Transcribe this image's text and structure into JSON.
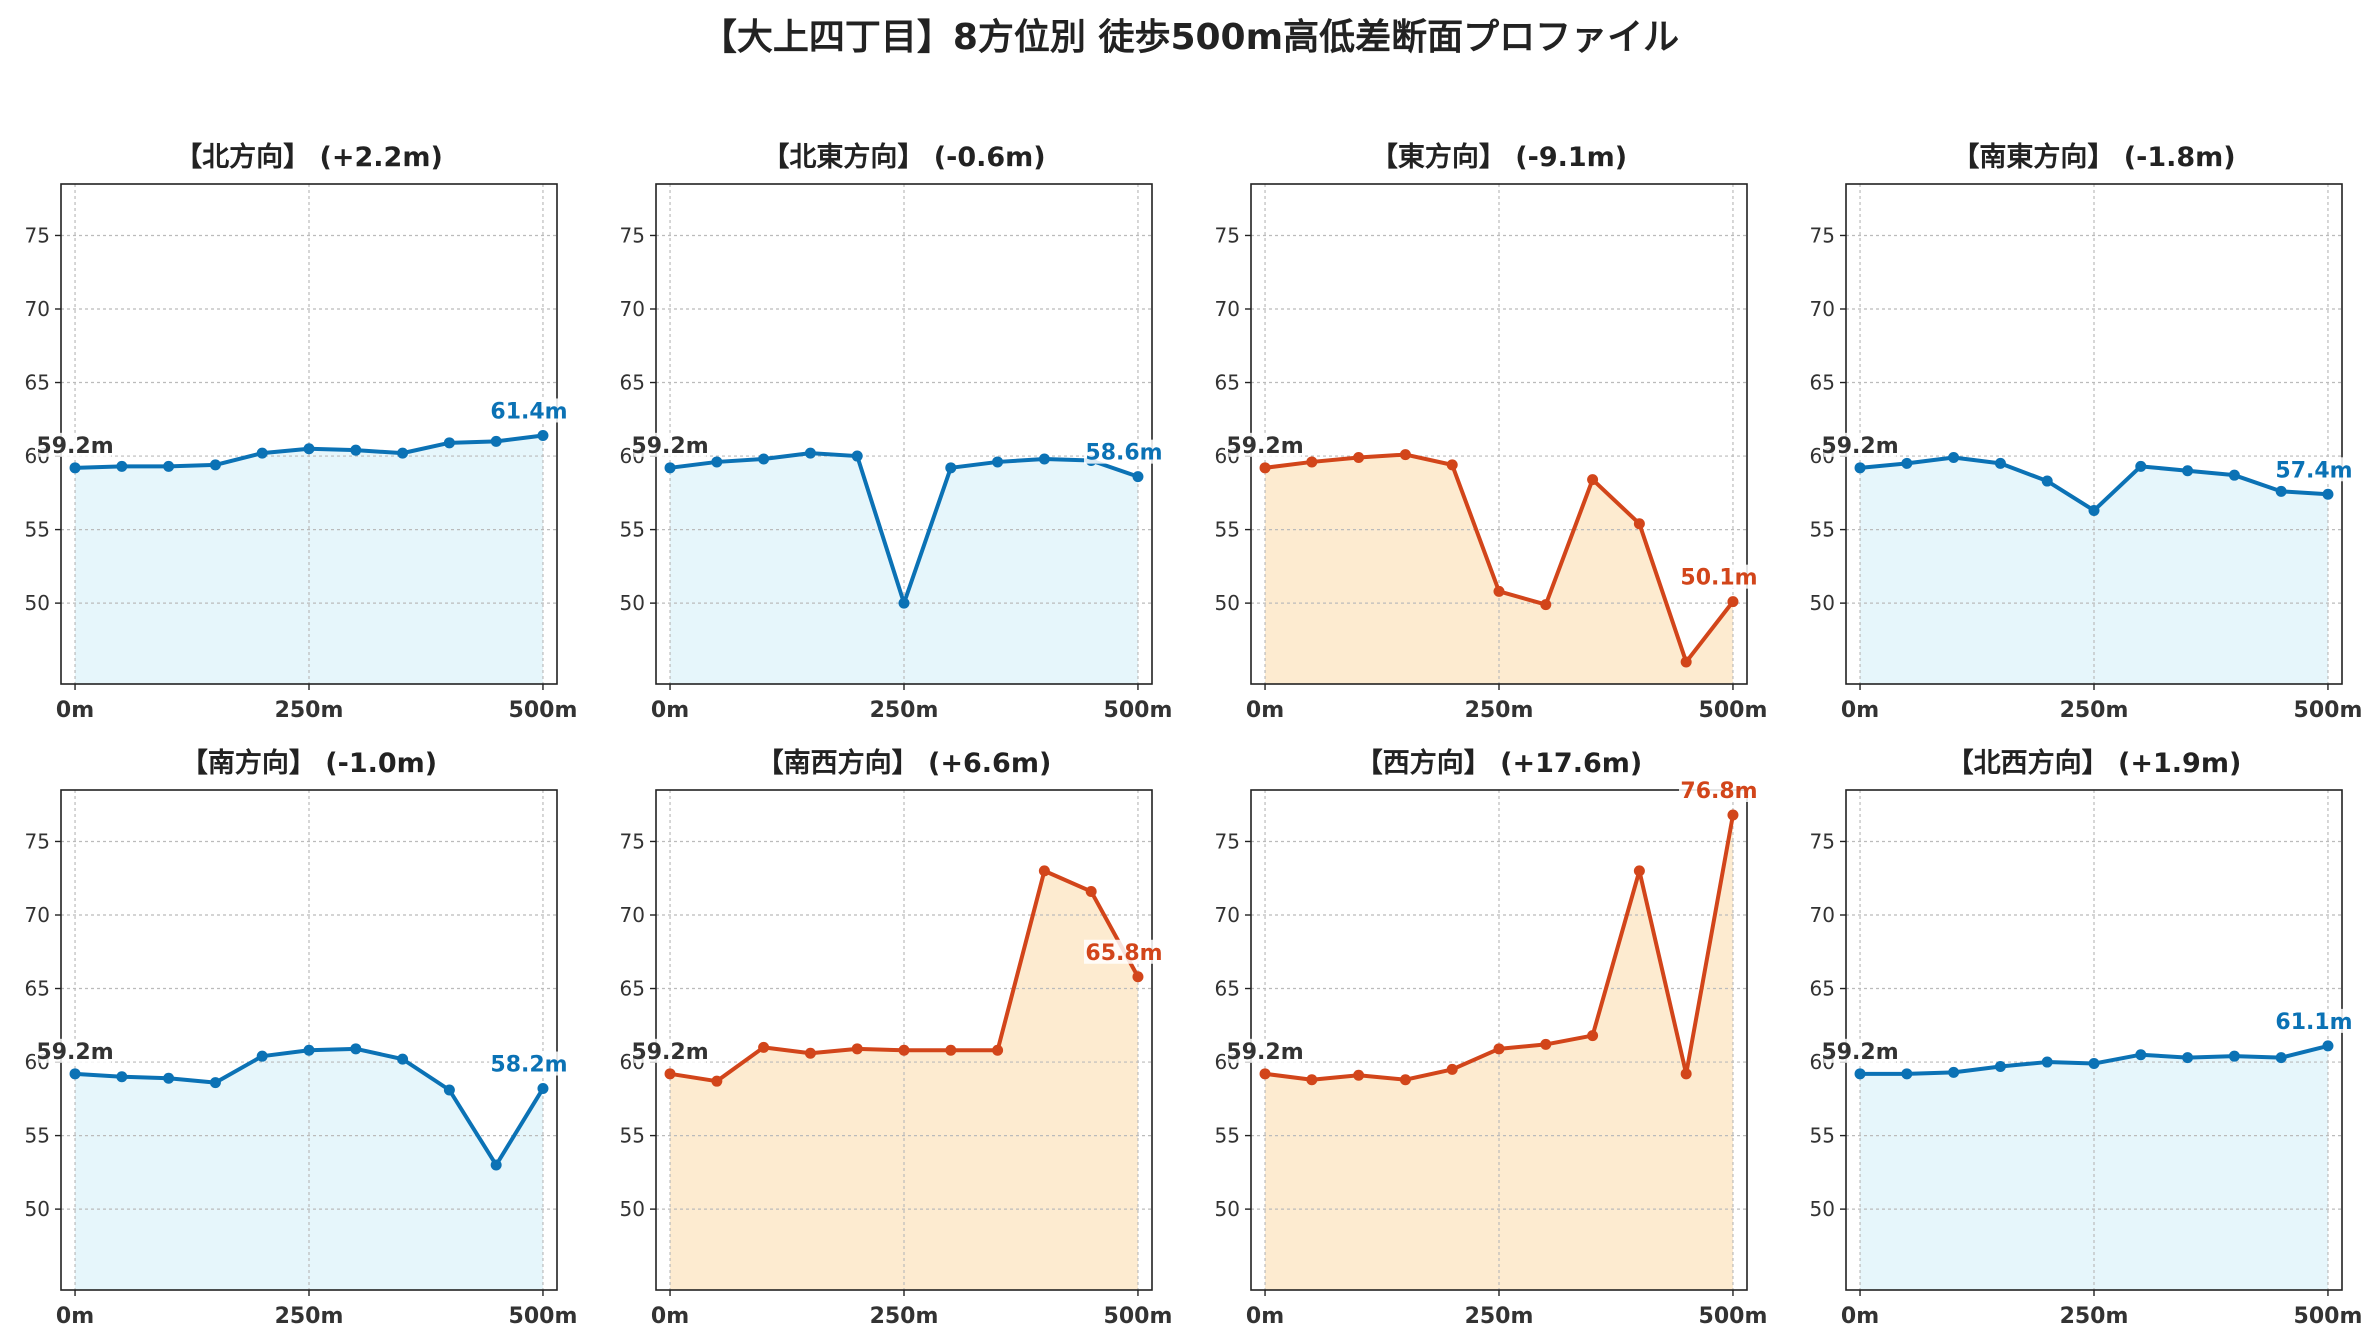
{
  "title": "【大上四丁目】8方位別 徒歩500m高低差断面プロファイル",
  "colors": {
    "blue": "#0b72b5",
    "red": "#d2451a",
    "blue_fill": "#e6f6fb",
    "red_fill": "#fdebd0",
    "grid": "#bbbbbb",
    "text": "#333333"
  },
  "chart_data": [
    {
      "type": "area",
      "title": "【北方向】 (+2.2m)",
      "trend": "up_small",
      "x": [
        0,
        50,
        100,
        150,
        200,
        250,
        300,
        350,
        400,
        450,
        500
      ],
      "y": [
        59.2,
        59.3,
        59.3,
        59.4,
        60.2,
        60.5,
        60.4,
        60.2,
        60.9,
        61.0,
        61.4
      ],
      "start_label": "59.2m",
      "end_label": "61.4m",
      "xticks": [
        "0m",
        "250m",
        "500m"
      ],
      "yticks": [
        50,
        55,
        60,
        65,
        70,
        75
      ],
      "xlim": [
        -15,
        515
      ],
      "ylim": [
        44.5,
        78.5
      ],
      "grid": true
    },
    {
      "type": "area",
      "title": "【北東方向】 (-0.6m)",
      "trend": "down_small",
      "x": [
        0,
        50,
        100,
        150,
        200,
        250,
        300,
        350,
        400,
        450,
        500
      ],
      "y": [
        59.2,
        59.6,
        59.8,
        60.2,
        60.0,
        50.0,
        59.2,
        59.6,
        59.8,
        59.7,
        58.6
      ],
      "start_label": "59.2m",
      "end_label": "58.6m",
      "xticks": [
        "0m",
        "250m",
        "500m"
      ],
      "yticks": [
        50,
        55,
        60,
        65,
        70,
        75
      ],
      "xlim": [
        -15,
        515
      ],
      "ylim": [
        44.5,
        78.5
      ],
      "grid": true
    },
    {
      "type": "area",
      "title": "【東方向】 (-9.1m)",
      "trend": "down_large",
      "x": [
        0,
        50,
        100,
        150,
        200,
        250,
        300,
        350,
        400,
        450,
        500
      ],
      "y": [
        59.2,
        59.6,
        59.9,
        60.1,
        59.4,
        50.8,
        49.9,
        58.4,
        55.4,
        46.0,
        50.1
      ],
      "start_label": "59.2m",
      "end_label": "50.1m",
      "xticks": [
        "0m",
        "250m",
        "500m"
      ],
      "yticks": [
        50,
        55,
        60,
        65,
        70,
        75
      ],
      "xlim": [
        -15,
        515
      ],
      "ylim": [
        44.5,
        78.5
      ],
      "grid": true
    },
    {
      "type": "area",
      "title": "【南東方向】 (-1.8m)",
      "trend": "down_small",
      "x": [
        0,
        50,
        100,
        150,
        200,
        250,
        300,
        350,
        400,
        450,
        500
      ],
      "y": [
        59.2,
        59.5,
        59.9,
        59.5,
        58.3,
        56.3,
        59.3,
        59.0,
        58.7,
        57.6,
        57.4
      ],
      "start_label": "59.2m",
      "end_label": "57.4m",
      "xticks": [
        "0m",
        "250m",
        "500m"
      ],
      "yticks": [
        50,
        55,
        60,
        65,
        70,
        75
      ],
      "xlim": [
        -15,
        515
      ],
      "ylim": [
        44.5,
        78.5
      ],
      "grid": true
    },
    {
      "type": "area",
      "title": "【南方向】 (-1.0m)",
      "trend": "down_small",
      "x": [
        0,
        50,
        100,
        150,
        200,
        250,
        300,
        350,
        400,
        450,
        500
      ],
      "y": [
        59.2,
        59.0,
        58.9,
        58.6,
        60.4,
        60.8,
        60.9,
        60.2,
        58.1,
        53.0,
        58.2
      ],
      "start_label": "59.2m",
      "end_label": "58.2m",
      "xticks": [
        "0m",
        "250m",
        "500m"
      ],
      "yticks": [
        50,
        55,
        60,
        65,
        70,
        75
      ],
      "xlim": [
        -15,
        515
      ],
      "ylim": [
        44.5,
        78.5
      ],
      "grid": true
    },
    {
      "type": "area",
      "title": "【南西方向】 (+6.6m)",
      "trend": "up_large",
      "x": [
        0,
        50,
        100,
        150,
        200,
        250,
        300,
        350,
        400,
        450,
        500
      ],
      "y": [
        59.2,
        58.7,
        61.0,
        60.6,
        60.9,
        60.8,
        60.8,
        60.8,
        73.0,
        71.6,
        65.8
      ],
      "start_label": "59.2m",
      "end_label": "65.8m",
      "xticks": [
        "0m",
        "250m",
        "500m"
      ],
      "yticks": [
        50,
        55,
        60,
        65,
        70,
        75
      ],
      "xlim": [
        -15,
        515
      ],
      "ylim": [
        44.5,
        78.5
      ],
      "grid": true
    },
    {
      "type": "area",
      "title": "【西方向】 (+17.6m)",
      "trend": "up_large",
      "x": [
        0,
        50,
        100,
        150,
        200,
        250,
        300,
        350,
        400,
        450,
        500
      ],
      "y": [
        59.2,
        58.8,
        59.1,
        58.8,
        59.5,
        60.9,
        61.2,
        61.8,
        73.0,
        59.2,
        76.8
      ],
      "start_label": "59.2m",
      "end_label": "76.8m",
      "xticks": [
        "0m",
        "250m",
        "500m"
      ],
      "yticks": [
        50,
        55,
        60,
        65,
        70,
        75
      ],
      "xlim": [
        -15,
        515
      ],
      "ylim": [
        44.5,
        78.5
      ],
      "grid": true
    },
    {
      "type": "area",
      "title": "【北西方向】 (+1.9m)",
      "trend": "up_small",
      "x": [
        0,
        50,
        100,
        150,
        200,
        250,
        300,
        350,
        400,
        450,
        500
      ],
      "y": [
        59.2,
        59.2,
        59.3,
        59.7,
        60.0,
        59.9,
        60.5,
        60.3,
        60.4,
        60.3,
        61.1
      ],
      "start_label": "59.2m",
      "end_label": "61.1m",
      "xticks": [
        "0m",
        "250m",
        "500m"
      ],
      "yticks": [
        50,
        55,
        60,
        65,
        70,
        75
      ],
      "xlim": [
        -15,
        515
      ],
      "ylim": [
        44.5,
        78.5
      ],
      "grid": true
    }
  ]
}
